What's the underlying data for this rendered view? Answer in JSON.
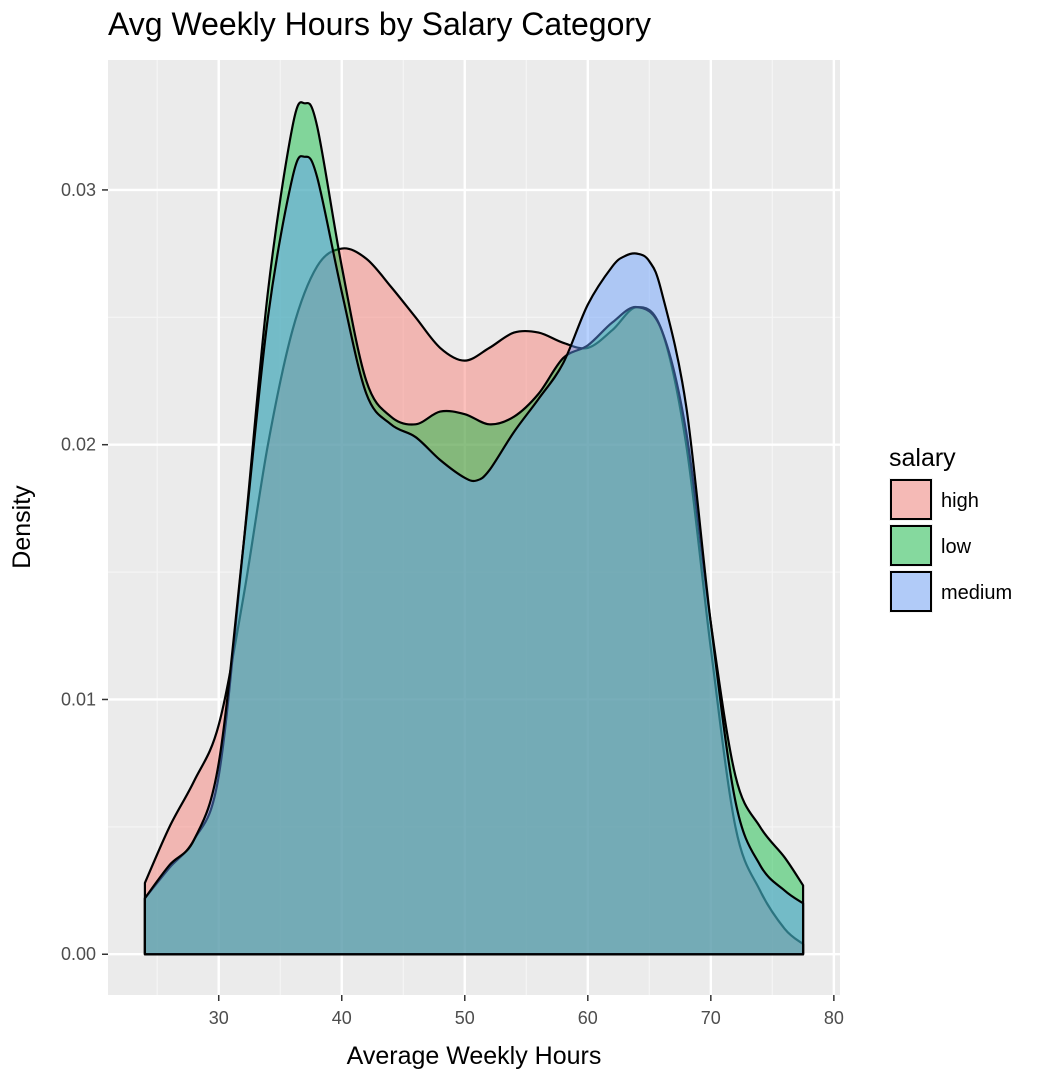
{
  "chart_data": {
    "type": "area",
    "title": "Avg Weekly Hours by Salary Category",
    "xlabel": "Average Weekly Hours",
    "ylabel": "Density",
    "xlim": [
      21,
      80.5
    ],
    "ylim": [
      -0.0016,
      0.0351
    ],
    "x_ticks": [
      30,
      40,
      50,
      60,
      70,
      80
    ],
    "y_ticks": [
      0.0,
      0.01,
      0.02,
      0.03
    ],
    "y_tick_labels": [
      "0.00",
      "0.01",
      "0.02",
      "0.03"
    ],
    "grid": true,
    "legend": {
      "title": "salary",
      "position": "right"
    },
    "series": [
      {
        "name": "high",
        "color": "#F8766D",
        "points": [
          [
            24,
            0.0028
          ],
          [
            26,
            0.005
          ],
          [
            28,
            0.0068
          ],
          [
            30,
            0.009
          ],
          [
            32,
            0.014
          ],
          [
            34,
            0.02
          ],
          [
            36,
            0.0245
          ],
          [
            38,
            0.027
          ],
          [
            40,
            0.0277
          ],
          [
            42,
            0.0273
          ],
          [
            44,
            0.0262
          ],
          [
            46,
            0.025
          ],
          [
            48,
            0.0238
          ],
          [
            50,
            0.0233
          ],
          [
            52,
            0.0238
          ],
          [
            54,
            0.0244
          ],
          [
            56,
            0.0244
          ],
          [
            58,
            0.024
          ],
          [
            60,
            0.0238
          ],
          [
            62,
            0.0245
          ],
          [
            64,
            0.0254
          ],
          [
            66,
            0.0245
          ],
          [
            68,
            0.02
          ],
          [
            70,
            0.012
          ],
          [
            72,
            0.005
          ],
          [
            74,
            0.0025
          ],
          [
            76,
            0.001
          ],
          [
            77.5,
            0.0004
          ]
        ]
      },
      {
        "name": "low",
        "color": "#00BA38",
        "points": [
          [
            24,
            0.0022
          ],
          [
            26,
            0.0034
          ],
          [
            28,
            0.0045
          ],
          [
            30,
            0.007
          ],
          [
            32,
            0.016
          ],
          [
            34,
            0.026
          ],
          [
            36,
            0.0325
          ],
          [
            37,
            0.0334
          ],
          [
            38,
            0.0325
          ],
          [
            40,
            0.027
          ],
          [
            42,
            0.0225
          ],
          [
            44,
            0.0211
          ],
          [
            46,
            0.0208
          ],
          [
            48,
            0.0213
          ],
          [
            50,
            0.0212
          ],
          [
            52,
            0.0208
          ],
          [
            54,
            0.0211
          ],
          [
            56,
            0.022
          ],
          [
            58,
            0.0234
          ],
          [
            60,
            0.0239
          ],
          [
            62,
            0.0248
          ],
          [
            64,
            0.0254
          ],
          [
            66,
            0.0245
          ],
          [
            68,
            0.0205
          ],
          [
            70,
            0.013
          ],
          [
            72,
            0.007
          ],
          [
            74,
            0.005
          ],
          [
            76,
            0.0038
          ],
          [
            77.5,
            0.0027
          ]
        ]
      },
      {
        "name": "medium",
        "color": "#619CFF",
        "points": [
          [
            24,
            0.0022
          ],
          [
            26,
            0.0035
          ],
          [
            28,
            0.0045
          ],
          [
            30,
            0.0075
          ],
          [
            32,
            0.016
          ],
          [
            34,
            0.025
          ],
          [
            36,
            0.0305
          ],
          [
            37,
            0.0313
          ],
          [
            38,
            0.0305
          ],
          [
            40,
            0.026
          ],
          [
            42,
            0.022
          ],
          [
            44,
            0.0208
          ],
          [
            46,
            0.0203
          ],
          [
            48,
            0.0194
          ],
          [
            50,
            0.0187
          ],
          [
            51,
            0.0186
          ],
          [
            52,
            0.019
          ],
          [
            54,
            0.0205
          ],
          [
            56,
            0.0218
          ],
          [
            58,
            0.0232
          ],
          [
            60,
            0.0255
          ],
          [
            62,
            0.027
          ],
          [
            63,
            0.0274
          ],
          [
            64,
            0.0275
          ],
          [
            65,
            0.0272
          ],
          [
            66,
            0.026
          ],
          [
            68,
            0.0215
          ],
          [
            70,
            0.013
          ],
          [
            72,
            0.006
          ],
          [
            74,
            0.0035
          ],
          [
            76,
            0.0025
          ],
          [
            77.5,
            0.002
          ]
        ]
      }
    ]
  }
}
